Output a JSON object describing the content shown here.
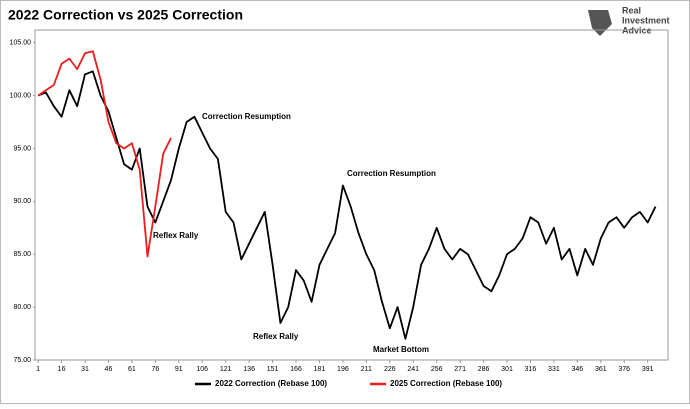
{
  "chart_data": {
    "type": "line",
    "title": "2022 Correction vs 2025 Correction",
    "logo_lines": [
      "Real",
      "Investment",
      "Advice"
    ],
    "x": [
      1,
      6,
      11,
      16,
      21,
      26,
      31,
      36,
      41,
      46,
      51,
      56,
      61,
      66,
      71,
      76,
      81,
      86,
      91,
      96,
      101,
      106,
      111,
      116,
      121,
      126,
      131,
      136,
      141,
      146,
      151,
      156,
      161,
      166,
      171,
      176,
      181,
      186,
      191,
      196,
      201,
      206,
      211,
      216,
      221,
      226,
      231,
      236,
      241,
      246,
      251,
      256,
      261,
      266,
      271,
      276,
      281,
      286,
      291,
      296,
      301,
      306,
      311,
      316,
      321,
      326,
      331,
      336,
      341,
      346,
      351,
      356,
      361,
      366,
      371,
      376,
      381,
      386,
      391,
      396
    ],
    "series": [
      {
        "name": "2022 Correction (Rebase 100)",
        "color": "#000000",
        "values": [
          100,
          100.3,
          99,
          98,
          100.5,
          99,
          102,
          102.3,
          100,
          98.5,
          96,
          93.5,
          93,
          95,
          89.5,
          88,
          90,
          92,
          95,
          97.5,
          98,
          96.5,
          95,
          94,
          89,
          88,
          84.5,
          86,
          87.5,
          89,
          84,
          78.5,
          80,
          83.5,
          82.5,
          80.5,
          84,
          85.5,
          87,
          91.5,
          89.5,
          87,
          85,
          83.5,
          80.5,
          78,
          80,
          77,
          80,
          84,
          85.5,
          87.5,
          85.5,
          84.5,
          85.5,
          85,
          83.5,
          82,
          81.5,
          83,
          85,
          85.5,
          86.5,
          88.5,
          88,
          86,
          87.5,
          84.5,
          85.5,
          83,
          85.5,
          84,
          86.5,
          88,
          88.5,
          87.5,
          88.5,
          89,
          88,
          89.5
        ]
      },
      {
        "name": "2025 Correction (Rebase 100)",
        "color": "#ee1c1c",
        "values": [
          100,
          100.5,
          101,
          103,
          103.5,
          102.5,
          104,
          104.2,
          101.5,
          97.5,
          95.5,
          95,
          95.5,
          93,
          84.8,
          89.5,
          94.5,
          96,
          null,
          null,
          null,
          null,
          null,
          null,
          null,
          null,
          null,
          null,
          null,
          null,
          null,
          null,
          null,
          null,
          null,
          null,
          null,
          null,
          null,
          null,
          null,
          null,
          null,
          null,
          null,
          null,
          null,
          null,
          null,
          null,
          null,
          null,
          null,
          null,
          null,
          null,
          null,
          null,
          null,
          null,
          null,
          null,
          null,
          null,
          null,
          null,
          null,
          null,
          null,
          null,
          null,
          null,
          null,
          null,
          null,
          null,
          null,
          null,
          null,
          null
        ]
      }
    ],
    "xlim": [
      -1,
      404
    ],
    "xticks": [
      1,
      16,
      31,
      46,
      61,
      76,
      91,
      106,
      121,
      136,
      151,
      166,
      181,
      196,
      211,
      226,
      241,
      256,
      271,
      286,
      301,
      316,
      331,
      346,
      361,
      376,
      391
    ],
    "ylim": [
      75,
      106.2
    ],
    "yticks": [
      {
        "value": 75,
        "label": "75.00"
      },
      {
        "value": 80,
        "label": "80.00"
      },
      {
        "value": 85,
        "label": "85.00"
      },
      {
        "value": 90,
        "label": "90.00"
      },
      {
        "value": 95,
        "label": "95.00"
      },
      {
        "value": 100,
        "label": "100.00"
      },
      {
        "value": 105,
        "label": "105.00"
      }
    ],
    "annotations": [
      "Correction Resumption",
      "Reflex Rally",
      "Reflex Rally",
      "Correction Resumption",
      "Market Bottom"
    ]
  }
}
